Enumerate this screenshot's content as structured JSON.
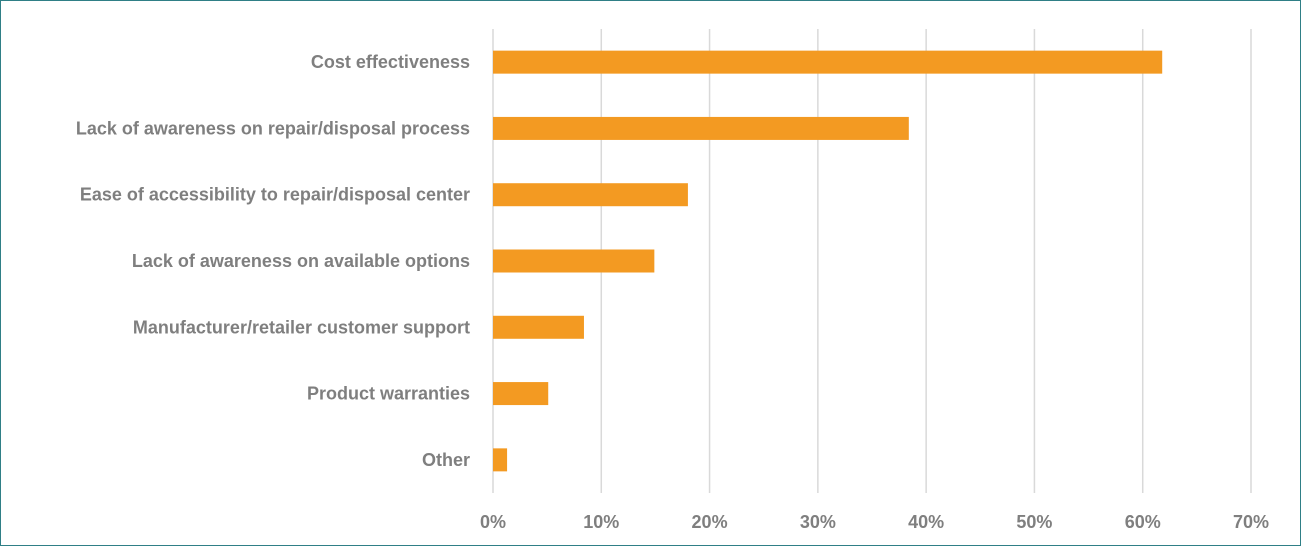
{
  "chart_data": {
    "type": "bar",
    "orientation": "horizontal",
    "title": "",
    "xlabel": "",
    "ylabel": "",
    "categories": [
      "Cost effectiveness",
      "Lack of awareness on repair/disposal process",
      "Ease of accessibility to repair/disposal center",
      "Lack of awareness on available options",
      "Manufacturer/retailer customer support",
      "Product warranties",
      "Other"
    ],
    "values": [
      61.8,
      38.4,
      18.0,
      14.9,
      8.4,
      5.1,
      1.3
    ],
    "xlim": [
      0,
      70
    ],
    "ticks": [
      "0%",
      "10%",
      "20%",
      "30%",
      "40%",
      "50%",
      "60%",
      "70%"
    ],
    "tick_values": [
      0,
      10,
      20,
      30,
      40,
      50,
      60,
      70
    ],
    "grid": true,
    "legend": "none",
    "colors": {
      "bar": "#f39a22",
      "text": "#7f7f7f",
      "grid": "#d9d9d9",
      "border": "#2f7f86"
    }
  }
}
